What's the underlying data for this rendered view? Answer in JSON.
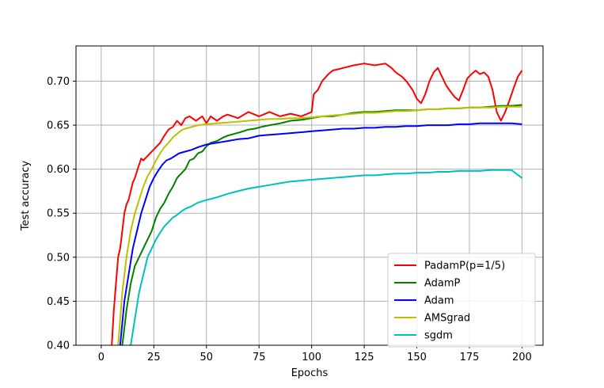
{
  "chart_data": {
    "type": "line",
    "title": "",
    "xlabel": "Epochs",
    "ylabel": "Test accuracy",
    "xlim": [
      -12,
      210
    ],
    "ylim": [
      0.4,
      0.74
    ],
    "xticks": [
      0,
      25,
      50,
      75,
      100,
      125,
      150,
      175,
      200
    ],
    "yticks": [
      0.4,
      0.45,
      0.5,
      0.55,
      0.6,
      0.65,
      0.7
    ],
    "grid": true,
    "legend_position": "lower-right",
    "series": [
      {
        "name": "PadamP(p=1/5)",
        "color": "#ff0000",
        "points": [
          [
            5,
            0.4
          ],
          [
            6,
            0.44
          ],
          [
            7,
            0.47
          ],
          [
            8,
            0.5
          ],
          [
            9,
            0.51
          ],
          [
            10,
            0.53
          ],
          [
            11,
            0.55
          ],
          [
            12,
            0.56
          ],
          [
            13,
            0.565
          ],
          [
            14,
            0.575
          ],
          [
            15,
            0.585
          ],
          [
            16,
            0.59
          ],
          [
            17,
            0.598
          ],
          [
            18,
            0.605
          ],
          [
            19,
            0.612
          ],
          [
            20,
            0.61
          ],
          [
            22,
            0.615
          ],
          [
            24,
            0.62
          ],
          [
            26,
            0.625
          ],
          [
            28,
            0.63
          ],
          [
            30,
            0.638
          ],
          [
            32,
            0.645
          ],
          [
            34,
            0.648
          ],
          [
            36,
            0.655
          ],
          [
            38,
            0.65
          ],
          [
            40,
            0.658
          ],
          [
            42,
            0.66
          ],
          [
            45,
            0.655
          ],
          [
            48,
            0.66
          ],
          [
            50,
            0.652
          ],
          [
            52,
            0.66
          ],
          [
            55,
            0.655
          ],
          [
            58,
            0.66
          ],
          [
            60,
            0.662
          ],
          [
            65,
            0.658
          ],
          [
            70,
            0.665
          ],
          [
            75,
            0.66
          ],
          [
            80,
            0.665
          ],
          [
            85,
            0.66
          ],
          [
            90,
            0.663
          ],
          [
            95,
            0.66
          ],
          [
            100,
            0.665
          ],
          [
            101,
            0.685
          ],
          [
            103,
            0.69
          ],
          [
            105,
            0.7
          ],
          [
            108,
            0.708
          ],
          [
            110,
            0.712
          ],
          [
            115,
            0.715
          ],
          [
            120,
            0.718
          ],
          [
            125,
            0.72
          ],
          [
            130,
            0.718
          ],
          [
            135,
            0.72
          ],
          [
            138,
            0.715
          ],
          [
            140,
            0.71
          ],
          [
            143,
            0.705
          ],
          [
            145,
            0.7
          ],
          [
            148,
            0.69
          ],
          [
            150,
            0.68
          ],
          [
            152,
            0.675
          ],
          [
            154,
            0.685
          ],
          [
            156,
            0.7
          ],
          [
            158,
            0.71
          ],
          [
            160,
            0.715
          ],
          [
            162,
            0.705
          ],
          [
            164,
            0.695
          ],
          [
            166,
            0.688
          ],
          [
            168,
            0.682
          ],
          [
            170,
            0.678
          ],
          [
            172,
            0.69
          ],
          [
            174,
            0.703
          ],
          [
            176,
            0.708
          ],
          [
            178,
            0.712
          ],
          [
            180,
            0.708
          ],
          [
            182,
            0.71
          ],
          [
            184,
            0.705
          ],
          [
            186,
            0.69
          ],
          [
            188,
            0.665
          ],
          [
            190,
            0.655
          ],
          [
            192,
            0.665
          ],
          [
            194,
            0.678
          ],
          [
            196,
            0.692
          ],
          [
            198,
            0.705
          ],
          [
            200,
            0.712
          ]
        ]
      },
      {
        "name": "AdamP",
        "color": "#008000",
        "points": [
          [
            10,
            0.4
          ],
          [
            12,
            0.44
          ],
          [
            14,
            0.47
          ],
          [
            16,
            0.49
          ],
          [
            18,
            0.5
          ],
          [
            20,
            0.51
          ],
          [
            22,
            0.52
          ],
          [
            24,
            0.53
          ],
          [
            26,
            0.545
          ],
          [
            28,
            0.555
          ],
          [
            30,
            0.562
          ],
          [
            32,
            0.572
          ],
          [
            34,
            0.58
          ],
          [
            36,
            0.59
          ],
          [
            38,
            0.595
          ],
          [
            40,
            0.6
          ],
          [
            42,
            0.61
          ],
          [
            44,
            0.612
          ],
          [
            46,
            0.618
          ],
          [
            48,
            0.62
          ],
          [
            50,
            0.626
          ],
          [
            52,
            0.63
          ],
          [
            55,
            0.632
          ],
          [
            58,
            0.636
          ],
          [
            60,
            0.638
          ],
          [
            63,
            0.64
          ],
          [
            66,
            0.642
          ],
          [
            70,
            0.645
          ],
          [
            73,
            0.646
          ],
          [
            76,
            0.648
          ],
          [
            80,
            0.65
          ],
          [
            85,
            0.652
          ],
          [
            90,
            0.655
          ],
          [
            95,
            0.656
          ],
          [
            100,
            0.658
          ],
          [
            105,
            0.66
          ],
          [
            110,
            0.66
          ],
          [
            115,
            0.662
          ],
          [
            120,
            0.664
          ],
          [
            125,
            0.665
          ],
          [
            130,
            0.665
          ],
          [
            135,
            0.666
          ],
          [
            140,
            0.667
          ],
          [
            145,
            0.667
          ],
          [
            150,
            0.667
          ],
          [
            155,
            0.668
          ],
          [
            160,
            0.668
          ],
          [
            165,
            0.669
          ],
          [
            170,
            0.669
          ],
          [
            175,
            0.67
          ],
          [
            180,
            0.67
          ],
          [
            185,
            0.671
          ],
          [
            190,
            0.672
          ],
          [
            195,
            0.672
          ],
          [
            200,
            0.673
          ]
        ]
      },
      {
        "name": "Adam",
        "color": "#0000ff",
        "points": [
          [
            9,
            0.4
          ],
          [
            11,
            0.45
          ],
          [
            13,
            0.48
          ],
          [
            15,
            0.51
          ],
          [
            17,
            0.53
          ],
          [
            19,
            0.55
          ],
          [
            21,
            0.565
          ],
          [
            23,
            0.58
          ],
          [
            25,
            0.59
          ],
          [
            27,
            0.598
          ],
          [
            29,
            0.605
          ],
          [
            31,
            0.61
          ],
          [
            33,
            0.612
          ],
          [
            35,
            0.615
          ],
          [
            37,
            0.618
          ],
          [
            40,
            0.62
          ],
          [
            43,
            0.622
          ],
          [
            46,
            0.625
          ],
          [
            50,
            0.628
          ],
          [
            55,
            0.63
          ],
          [
            60,
            0.632
          ],
          [
            65,
            0.634
          ],
          [
            70,
            0.635
          ],
          [
            75,
            0.638
          ],
          [
            80,
            0.639
          ],
          [
            85,
            0.64
          ],
          [
            90,
            0.641
          ],
          [
            95,
            0.642
          ],
          [
            100,
            0.643
          ],
          [
            105,
            0.644
          ],
          [
            110,
            0.645
          ],
          [
            115,
            0.646
          ],
          [
            120,
            0.646
          ],
          [
            125,
            0.647
          ],
          [
            130,
            0.647
          ],
          [
            135,
            0.648
          ],
          [
            140,
            0.648
          ],
          [
            145,
            0.649
          ],
          [
            150,
            0.649
          ],
          [
            155,
            0.65
          ],
          [
            160,
            0.65
          ],
          [
            165,
            0.65
          ],
          [
            170,
            0.651
          ],
          [
            175,
            0.651
          ],
          [
            180,
            0.652
          ],
          [
            185,
            0.652
          ],
          [
            190,
            0.652
          ],
          [
            195,
            0.652
          ],
          [
            200,
            0.651
          ]
        ]
      },
      {
        "name": "AMSgrad",
        "color": "#bfbf00",
        "points": [
          [
            8,
            0.4
          ],
          [
            10,
            0.46
          ],
          [
            12,
            0.5
          ],
          [
            14,
            0.53
          ],
          [
            16,
            0.55
          ],
          [
            18,
            0.565
          ],
          [
            20,
            0.58
          ],
          [
            22,
            0.592
          ],
          [
            24,
            0.6
          ],
          [
            26,
            0.61
          ],
          [
            28,
            0.618
          ],
          [
            30,
            0.625
          ],
          [
            32,
            0.63
          ],
          [
            34,
            0.636
          ],
          [
            36,
            0.64
          ],
          [
            38,
            0.644
          ],
          [
            40,
            0.646
          ],
          [
            43,
            0.648
          ],
          [
            46,
            0.65
          ],
          [
            50,
            0.651
          ],
          [
            55,
            0.652
          ],
          [
            60,
            0.653
          ],
          [
            65,
            0.654
          ],
          [
            70,
            0.655
          ],
          [
            75,
            0.656
          ],
          [
            80,
            0.657
          ],
          [
            85,
            0.657
          ],
          [
            90,
            0.658
          ],
          [
            95,
            0.658
          ],
          [
            100,
            0.659
          ],
          [
            105,
            0.66
          ],
          [
            110,
            0.661
          ],
          [
            115,
            0.662
          ],
          [
            120,
            0.663
          ],
          [
            125,
            0.664
          ],
          [
            130,
            0.664
          ],
          [
            135,
            0.665
          ],
          [
            140,
            0.666
          ],
          [
            145,
            0.666
          ],
          [
            150,
            0.667
          ],
          [
            155,
            0.668
          ],
          [
            160,
            0.668
          ],
          [
            165,
            0.669
          ],
          [
            170,
            0.669
          ],
          [
            175,
            0.67
          ],
          [
            180,
            0.67
          ],
          [
            185,
            0.67
          ],
          [
            190,
            0.671
          ],
          [
            195,
            0.671
          ],
          [
            200,
            0.671
          ]
        ]
      },
      {
        "name": "sgdm",
        "color": "#00bfbf",
        "points": [
          [
            14,
            0.4
          ],
          [
            16,
            0.43
          ],
          [
            18,
            0.46
          ],
          [
            20,
            0.48
          ],
          [
            22,
            0.5
          ],
          [
            24,
            0.51
          ],
          [
            26,
            0.52
          ],
          [
            28,
            0.528
          ],
          [
            30,
            0.535
          ],
          [
            32,
            0.54
          ],
          [
            34,
            0.545
          ],
          [
            36,
            0.548
          ],
          [
            38,
            0.552
          ],
          [
            40,
            0.555
          ],
          [
            43,
            0.558
          ],
          [
            46,
            0.562
          ],
          [
            50,
            0.565
          ],
          [
            55,
            0.568
          ],
          [
            60,
            0.572
          ],
          [
            65,
            0.575
          ],
          [
            70,
            0.578
          ],
          [
            75,
            0.58
          ],
          [
            80,
            0.582
          ],
          [
            85,
            0.584
          ],
          [
            90,
            0.586
          ],
          [
            95,
            0.587
          ],
          [
            100,
            0.588
          ],
          [
            105,
            0.589
          ],
          [
            110,
            0.59
          ],
          [
            115,
            0.591
          ],
          [
            120,
            0.592
          ],
          [
            125,
            0.593
          ],
          [
            130,
            0.593
          ],
          [
            135,
            0.594
          ],
          [
            140,
            0.595
          ],
          [
            145,
            0.595
          ],
          [
            150,
            0.596
          ],
          [
            155,
            0.596
          ],
          [
            160,
            0.597
          ],
          [
            165,
            0.597
          ],
          [
            170,
            0.598
          ],
          [
            175,
            0.598
          ],
          [
            180,
            0.598
          ],
          [
            185,
            0.599
          ],
          [
            190,
            0.599
          ],
          [
            195,
            0.599
          ],
          [
            200,
            0.59
          ]
        ]
      }
    ]
  }
}
